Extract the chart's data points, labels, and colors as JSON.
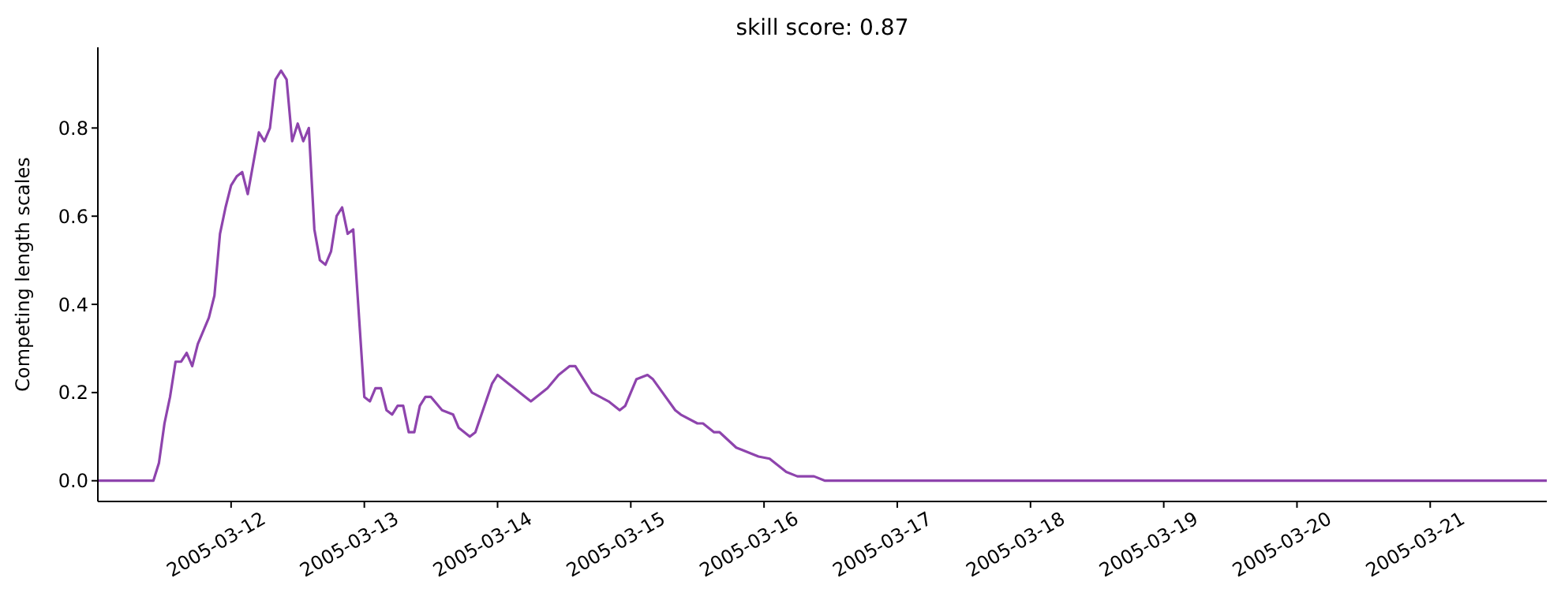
{
  "chart_data": {
    "type": "line",
    "title": "skill score: 0.87",
    "ylabel": "Competing length scales",
    "x": [
      "2005-03-11T00:00",
      "2005-03-11T10:00",
      "2005-03-11T11:00",
      "2005-03-11T12:00",
      "2005-03-11T13:00",
      "2005-03-11T14:00",
      "2005-03-11T15:00",
      "2005-03-11T16:00",
      "2005-03-11T17:00",
      "2005-03-11T18:00",
      "2005-03-11T19:00",
      "2005-03-11T20:00",
      "2005-03-11T21:00",
      "2005-03-11T22:00",
      "2005-03-11T23:00",
      "2005-03-12T00:00",
      "2005-03-12T01:00",
      "2005-03-12T02:00",
      "2005-03-12T03:00",
      "2005-03-12T04:00",
      "2005-03-12T05:00",
      "2005-03-12T06:00",
      "2005-03-12T07:00",
      "2005-03-12T08:00",
      "2005-03-12T09:00",
      "2005-03-12T10:00",
      "2005-03-12T11:00",
      "2005-03-12T12:00",
      "2005-03-12T13:00",
      "2005-03-12T14:00",
      "2005-03-12T15:00",
      "2005-03-12T16:00",
      "2005-03-12T17:00",
      "2005-03-12T18:00",
      "2005-03-12T19:00",
      "2005-03-12T20:00",
      "2005-03-12T21:00",
      "2005-03-12T22:00",
      "2005-03-13T00:00",
      "2005-03-13T01:00",
      "2005-03-13T02:00",
      "2005-03-13T03:00",
      "2005-03-13T04:00",
      "2005-03-13T05:00",
      "2005-03-13T06:00",
      "2005-03-13T07:00",
      "2005-03-13T08:00",
      "2005-03-13T09:00",
      "2005-03-13T10:00",
      "2005-03-13T11:00",
      "2005-03-13T12:00",
      "2005-03-13T14:00",
      "2005-03-13T16:00",
      "2005-03-13T17:00",
      "2005-03-13T19:00",
      "2005-03-13T20:00",
      "2005-03-13T23:00",
      "2005-03-14T00:00",
      "2005-03-14T02:00",
      "2005-03-14T03:00",
      "2005-03-14T05:00",
      "2005-03-14T06:00",
      "2005-03-14T09:00",
      "2005-03-14T11:00",
      "2005-03-14T13:00",
      "2005-03-14T14:00",
      "2005-03-14T17:00",
      "2005-03-14T20:00",
      "2005-03-14T22:00",
      "2005-03-14T23:00",
      "2005-03-15T01:00",
      "2005-03-15T03:00",
      "2005-03-15T04:00",
      "2005-03-15T08:00",
      "2005-03-15T09:00",
      "2005-03-15T12:00",
      "2005-03-15T13:00",
      "2005-03-15T15:00",
      "2005-03-15T16:00",
      "2005-03-15T19:00",
      "2005-03-15T20:00",
      "2005-03-15T23:00",
      "2005-03-16T01:00",
      "2005-03-16T04:00",
      "2005-03-16T06:00",
      "2005-03-16T07:00",
      "2005-03-16T09:00",
      "2005-03-16T11:00",
      "2005-03-21T21:00"
    ],
    "series": [
      {
        "color": "#8e44ad",
        "values": [
          0,
          0,
          0.04,
          0.13,
          0.19,
          0.27,
          0.27,
          0.29,
          0.26,
          0.31,
          0.34,
          0.37,
          0.42,
          0.56,
          0.62,
          0.67,
          0.69,
          0.7,
          0.65,
          0.72,
          0.79,
          0.77,
          0.8,
          0.91,
          0.93,
          0.91,
          0.77,
          0.81,
          0.77,
          0.8,
          0.57,
          0.5,
          0.49,
          0.52,
          0.6,
          0.62,
          0.56,
          0.57,
          0.19,
          0.18,
          0.21,
          0.21,
          0.16,
          0.15,
          0.17,
          0.17,
          0.11,
          0.11,
          0.17,
          0.19,
          0.19,
          0.16,
          0.15,
          0.12,
          0.1,
          0.11,
          0.22,
          0.24,
          0.22,
          0.21,
          0.19,
          0.18,
          0.21,
          0.24,
          0.26,
          0.26,
          0.2,
          0.18,
          0.16,
          0.17,
          0.23,
          0.24,
          0.23,
          0.16,
          0.15,
          0.13,
          0.13,
          0.11,
          0.11,
          0.075,
          0.07,
          0.055,
          0.05,
          0.02,
          0.01,
          0.01,
          0.01,
          0,
          0
        ]
      }
    ],
    "xlim": [
      "2005-03-11T00:00",
      "2005-03-21T21:00"
    ],
    "xticks": [
      "2005-03-12",
      "2005-03-13",
      "2005-03-14",
      "2005-03-15",
      "2005-03-16",
      "2005-03-17",
      "2005-03-18",
      "2005-03-19",
      "2005-03-20",
      "2005-03-21"
    ],
    "ylim": [
      -0.047,
      0.983
    ],
    "yticks": [
      {
        "value": 0,
        "label": "0.0"
      },
      {
        "value": 0.2,
        "label": "0.2"
      },
      {
        "value": 0.4,
        "label": "0.4"
      },
      {
        "value": 0.6,
        "label": "0.6"
      },
      {
        "value": 0.8,
        "label": "0.8"
      }
    ],
    "grid": false,
    "legend": false,
    "marker": "none",
    "line_style": "solid"
  }
}
